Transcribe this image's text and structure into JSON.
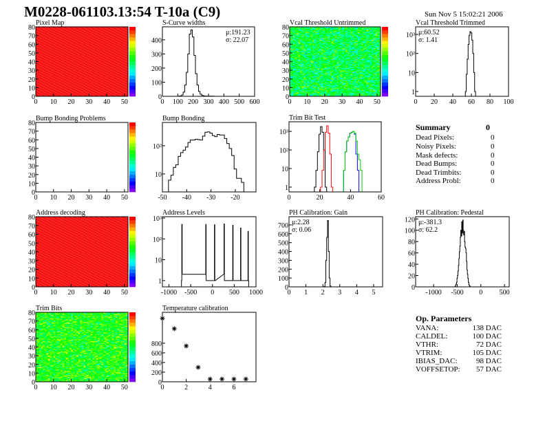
{
  "title": "M0228-061103.13:54 T-10a (C9)",
  "date": "Sun Nov  5 15:02:21 2006",
  "summary": {
    "title": "Summary",
    "total": "0",
    "rows": [
      {
        "label": "Dead Pixels:",
        "value": "0"
      },
      {
        "label": "Noisy Pixels:",
        "value": "0"
      },
      {
        "label": "Mask defects:",
        "value": "0"
      },
      {
        "label": "Dead Bumps:",
        "value": "0"
      },
      {
        "label": "Dead Trimbits:",
        "value": "0"
      },
      {
        "label": "Address Probl:",
        "value": "0"
      }
    ]
  },
  "op_parameters": {
    "title": "Op. Parameters",
    "rows": [
      {
        "label": "VANA:",
        "value": "138 DAC"
      },
      {
        "label": "CALDEL:",
        "value": "100 DAC"
      },
      {
        "label": "VTHR:",
        "value": "72 DAC"
      },
      {
        "label": "VTRIM:",
        "value": "105 DAC"
      },
      {
        "label": "IBIAS_DAC:",
        "value": "98 DAC"
      },
      {
        "label": "VOFFSETOP:",
        "value": "57 DAC"
      }
    ]
  },
  "chart_data": [
    {
      "id": "pixelmap",
      "type": "heatmap",
      "title": "Pixel Map",
      "xlim": [
        0,
        52
      ],
      "ylim": [
        0,
        80
      ],
      "nx": 52,
      "ny": 80,
      "z_range": [
        0,
        10
      ],
      "typical_z": 10,
      "spread": 0.02,
      "xticks": [
        "0",
        "10",
        "20",
        "30",
        "40",
        "50"
      ],
      "yticks": [
        "0",
        "10",
        "20",
        "30",
        "40",
        "50",
        "60",
        "70",
        "80"
      ]
    },
    {
      "id": "scurve",
      "type": "bar",
      "title": "S-Curve widths",
      "xlim": [
        0,
        600
      ],
      "ylim": [
        0,
        492
      ],
      "xticks": [
        "0",
        "100",
        "200",
        "300",
        "400",
        "500",
        "600"
      ],
      "yticks": [
        "0",
        "100",
        "200",
        "300",
        "400"
      ],
      "stats": [
        "μ:191.23",
        "σ: 22.07"
      ],
      "stats_pos": "top-right",
      "bin_width": 10,
      "series": [
        {
          "color": "#000000",
          "x": [
            110,
            120,
            130,
            140,
            150,
            160,
            170,
            180,
            190,
            200,
            210,
            220,
            230,
            240,
            250,
            260,
            270,
            280,
            290,
            300,
            330
          ],
          "y": [
            1,
            3,
            10,
            30,
            80,
            170,
            300,
            440,
            470,
            420,
            290,
            160,
            80,
            35,
            15,
            7,
            3,
            2,
            1,
            1,
            1
          ]
        }
      ]
    },
    {
      "id": "vcal_untrimmed",
      "type": "heatmap",
      "title": "Vcal Threshold Untrimmed",
      "xlim": [
        0,
        52
      ],
      "ylim": [
        0,
        80
      ],
      "nx": 52,
      "ny": 80,
      "z_range": [
        80,
        120
      ],
      "typical_z": 100,
      "spread": 0.13,
      "xticks": [
        "0",
        "10",
        "20",
        "30",
        "40",
        "50"
      ],
      "yticks": [
        "0",
        "10",
        "20",
        "30",
        "40",
        "50",
        "60",
        "70",
        "80"
      ]
    },
    {
      "id": "vcal_trimmed",
      "type": "bar",
      "title": "Vcal Threshold Trimmed",
      "xlim": [
        0,
        100
      ],
      "ylim": [
        0.56,
        2500
      ],
      "ylog": true,
      "xticks": [
        "0",
        "20",
        "40",
        "60",
        "80",
        "100"
      ],
      "yticks": [
        "1",
        "10",
        "10²",
        "10³"
      ],
      "stats": [
        "μ:60.52",
        "σ: 1.41"
      ],
      "stats_pos": "top-left",
      "bin_width": 1,
      "series": [
        {
          "color": "#000000",
          "x": [
            54,
            55,
            56,
            57,
            58,
            59,
            60,
            61,
            62,
            63,
            64
          ],
          "y": [
            1,
            8,
            50,
            300,
            900,
            1400,
            1200,
            500,
            100,
            10,
            1
          ]
        }
      ]
    },
    {
      "id": "bumpmap",
      "type": "heatmap",
      "title": "Bump Bonding Problems",
      "xlim": [
        0,
        52
      ],
      "ylim": [
        0,
        80
      ],
      "nx": 52,
      "ny": 80,
      "z_range": [
        -2,
        2
      ],
      "typical_z": null,
      "spread": 0,
      "xticks": [
        "0",
        "10",
        "20",
        "30",
        "40",
        "50"
      ],
      "yticks": [
        "0",
        "10",
        "20",
        "30",
        "40",
        "50",
        "60",
        "70",
        "80"
      ]
    },
    {
      "id": "bump",
      "type": "bar",
      "title": "Bump Bonding",
      "xlim": [
        -50,
        -11.5
      ],
      "ylim": [
        2.3,
        670
      ],
      "ylog": true,
      "xticks": [
        "-50",
        "-40",
        "-30",
        "-20"
      ],
      "yticks": [
        "10",
        "10²"
      ],
      "bin_width": 1,
      "series": [
        {
          "color": "#000000",
          "x": [
            -47,
            -46,
            -45,
            -44,
            -43,
            -42,
            -41,
            -40,
            -39,
            -38,
            -37,
            -36,
            -35,
            -34,
            -33,
            -32,
            -31,
            -30,
            -29,
            -28,
            -27,
            -26,
            -25,
            -24,
            -23,
            -22,
            -21,
            -20,
            -19,
            -18,
            -17
          ],
          "y": [
            6,
            9,
            17,
            21,
            42,
            57,
            70,
            90,
            130,
            160,
            160,
            170,
            165,
            160,
            220,
            300,
            310,
            280,
            230,
            210,
            250,
            240,
            240,
            180,
            120,
            80,
            45,
            15,
            7,
            7,
            5
          ]
        }
      ]
    },
    {
      "id": "trimbit_test",
      "type": "bar",
      "title": "Trim Bit Test",
      "xlim": [
        0,
        60
      ],
      "ylim": [
        0.55,
        3300
      ],
      "ylog": true,
      "xticks": [
        "0",
        "20",
        "40",
        "60"
      ],
      "yticks": [
        "1",
        "10",
        "10²",
        "10³"
      ],
      "bin_width": 1,
      "series": [
        {
          "color": "#000000",
          "x": [
            17,
            18,
            19,
            20,
            21,
            22,
            23,
            24
          ],
          "y": [
            1,
            8,
            80,
            700,
            1800,
            900,
            100,
            1
          ]
        },
        {
          "color": "#ff0000",
          "x": [
            21,
            22,
            23,
            24,
            25,
            26,
            27,
            28
          ],
          "y": [
            1,
            8,
            100,
            900,
            2000,
            800,
            60,
            1
          ]
        },
        {
          "color": "#0000ff",
          "x": [
            36,
            37,
            38,
            39,
            40,
            41,
            42,
            43,
            44,
            45
          ],
          "y": [
            8,
            80,
            300,
            500,
            800,
            900,
            1000,
            700,
            60,
            8
          ]
        },
        {
          "color": "#00cc00",
          "x": [
            36,
            37,
            38,
            39,
            40,
            41,
            42,
            43,
            44,
            45,
            46,
            47
          ],
          "y": [
            8,
            80,
            300,
            500,
            800,
            900,
            1000,
            800,
            300,
            60,
            30,
            8
          ]
        }
      ]
    },
    {
      "id": "address_decoding",
      "type": "heatmap",
      "title": "Address decoding",
      "xlim": [
        0,
        52
      ],
      "ylim": [
        0,
        80
      ],
      "nx": 52,
      "ny": 80,
      "z_range": [
        0,
        1
      ],
      "typical_z": 1,
      "spread": 0.02,
      "xticks": [
        "0",
        "10",
        "20",
        "30",
        "40",
        "50"
      ],
      "yticks": [
        "0",
        "10",
        "20",
        "30",
        "40",
        "50",
        "60",
        "70",
        "80"
      ]
    },
    {
      "id": "address_levels",
      "type": "bar",
      "title": "Address Levels",
      "xlim": [
        -1150,
        1000
      ],
      "ylim": [
        0.5,
        1160
      ],
      "ylog": true,
      "xticks": [
        "-1000",
        "-500",
        "0",
        "500",
        "1000"
      ],
      "yticks": [
        "1",
        "10",
        "10²",
        "10³"
      ],
      "bin_width": 8,
      "series": [
        {
          "color": "#000000",
          "x": [
            -708,
            -700,
            -692,
            -158,
            -150,
            -142,
            42,
            50,
            58,
            262,
            270,
            278,
            462,
            470,
            478,
            642,
            650,
            658,
            812,
            820,
            828
          ],
          "y": [
            1,
            500,
            2,
            2,
            500,
            1,
            1,
            480,
            1,
            2,
            520,
            1,
            1,
            450,
            1,
            1,
            330,
            1,
            1,
            230,
            1
          ]
        }
      ]
    },
    {
      "id": "ph_gain",
      "type": "bar",
      "title": "PH Calibration: Gain",
      "xlim": [
        0,
        5.53
      ],
      "ylim": [
        0,
        793
      ],
      "xticks": [
        "0",
        "1",
        "2",
        "3",
        "4",
        "5"
      ],
      "yticks": [
        "0",
        "100",
        "200",
        "300",
        "400",
        "500",
        "600",
        "700"
      ],
      "stats": [
        "μ:2.28",
        "σ: 0.06"
      ],
      "stats_pos": "top-left",
      "bin_width": 0.05,
      "series": [
        {
          "color": "#000000",
          "x": [
            2.1,
            2.15,
            2.2,
            2.25,
            2.3,
            2.35,
            2.4,
            2.45
          ],
          "y": [
            5,
            50,
            300,
            560,
            750,
            400,
            100,
            10
          ]
        }
      ]
    },
    {
      "id": "ph_pedestal",
      "type": "bar",
      "title": "PH Calibration: Pedestal",
      "xlim": [
        -1380,
        600
      ],
      "ylim": [
        0,
        124
      ],
      "xticks": [
        "-1000",
        "-500",
        "0",
        "500"
      ],
      "yticks": [
        "0",
        "20",
        "40",
        "60",
        "80",
        "100",
        "120"
      ],
      "stats": [
        "μ:-381.3",
        "σ: 62.2"
      ],
      "stats_pos": "top-left",
      "bin_width": 10,
      "series": [
        {
          "color": "#000000",
          "x": [
            -540,
            -530,
            -520,
            -510,
            -500,
            -490,
            -480,
            -470,
            -460,
            -450,
            -440,
            -430,
            -420,
            -410,
            -400,
            -390,
            -380,
            -370,
            -360,
            -350,
            -340,
            -330,
            -320,
            -310,
            -300,
            -290,
            -280,
            -270,
            -260,
            -250,
            -240,
            -230
          ],
          "y": [
            1,
            3,
            5,
            8,
            15,
            20,
            28,
            38,
            50,
            62,
            72,
            88,
            100,
            90,
            115,
            95,
            118,
            100,
            92,
            98,
            80,
            70,
            68,
            60,
            45,
            30,
            22,
            15,
            8,
            4,
            2,
            1
          ]
        }
      ]
    },
    {
      "id": "trim_bits",
      "type": "heatmap",
      "title": "Trim Bits",
      "xlim": [
        0,
        52
      ],
      "ylim": [
        0,
        80
      ],
      "nx": 52,
      "ny": 80,
      "z_range": [
        0,
        16
      ],
      "typical_z": 9,
      "spread": 0.12,
      "xticks": [
        "0",
        "10",
        "20",
        "30",
        "40",
        "50"
      ],
      "yticks": [
        "0",
        "10",
        "20",
        "30",
        "40",
        "50",
        "60",
        "70",
        "80"
      ]
    },
    {
      "id": "temperature_calibration",
      "type": "scatter",
      "title": "Temperature calibration",
      "xlim": [
        0,
        7.85
      ],
      "ylim": [
        0,
        1440
      ],
      "xticks": [
        "0",
        "2",
        "4",
        "6"
      ],
      "yticks": [
        "0",
        "200",
        "400",
        "600",
        "800"
      ],
      "series": [
        {
          "color": "#000000",
          "x": [
            0,
            1,
            2,
            3,
            4,
            5,
            6,
            7
          ],
          "y": [
            1314,
            1100,
            743,
            300,
            57,
            57,
            57,
            57
          ]
        }
      ]
    }
  ]
}
